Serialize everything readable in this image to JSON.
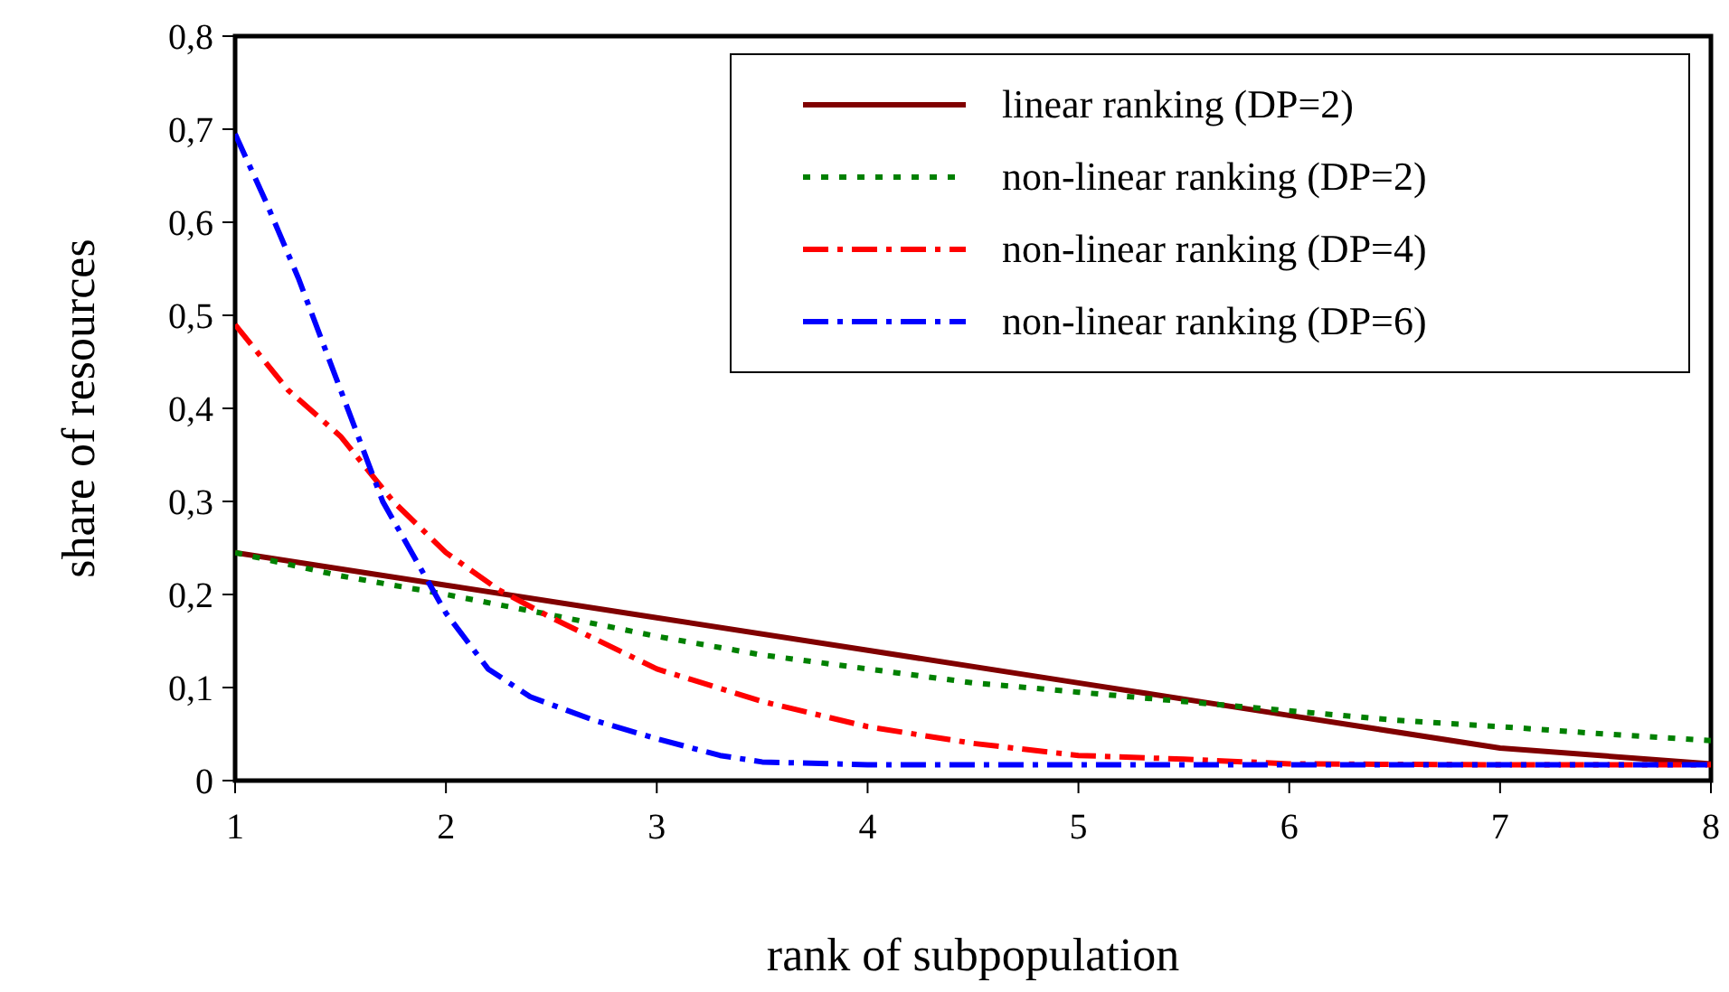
{
  "chart_data": {
    "type": "line",
    "xlabel": "rank of subpopulation",
    "ylabel": "share of resources",
    "x": [
      1,
      2,
      3,
      4,
      5,
      6,
      7,
      8
    ],
    "xlim": [
      1,
      8
    ],
    "xticks": [
      1,
      2,
      3,
      4,
      5,
      6,
      7,
      8
    ],
    "ylim": [
      0,
      0.8
    ],
    "yticks": [
      {
        "value": 0,
        "label": "0"
      },
      {
        "value": 0.1,
        "label": "0,1"
      },
      {
        "value": 0.2,
        "label": "0,2"
      },
      {
        "value": 0.3,
        "label": "0,3"
      },
      {
        "value": 0.4,
        "label": "0,4"
      },
      {
        "value": 0.5,
        "label": "0,5"
      },
      {
        "value": 0.6,
        "label": "0,6"
      },
      {
        "value": 0.7,
        "label": "0,7"
      },
      {
        "value": 0.8,
        "label": "0,8"
      }
    ],
    "grid": false,
    "legend": "top right",
    "marker": "none",
    "series": [
      {
        "name": "linear ranking (DP=2)",
        "color": "#800000",
        "line_style": "solid",
        "values": [
          0.245,
          0.21,
          0.175,
          0.14,
          0.105,
          0.07,
          0.035,
          0.018
        ]
      },
      {
        "name": "non-linear ranking (DP=2)",
        "color": "#008000",
        "line_style": "dotted",
        "x": [
          1,
          1.5,
          2,
          2.5,
          3,
          3.5,
          4,
          4.5,
          5,
          5.5,
          6,
          6.5,
          7,
          7.5,
          8
        ],
        "values": [
          0.245,
          0.22,
          0.2,
          0.178,
          0.155,
          0.135,
          0.12,
          0.105,
          0.095,
          0.085,
          0.075,
          0.065,
          0.058,
          0.05,
          0.043
        ]
      },
      {
        "name": "non-linear ranking (DP=4)",
        "color": "#ff0000",
        "line_style": "dashed",
        "x": [
          1,
          1.25,
          1.5,
          1.75,
          2,
          2.25,
          2.5,
          3,
          3.5,
          4,
          4.5,
          5,
          5.5,
          6,
          7,
          8
        ],
        "values": [
          0.49,
          0.42,
          0.37,
          0.3,
          0.245,
          0.205,
          0.175,
          0.12,
          0.085,
          0.058,
          0.04,
          0.027,
          0.023,
          0.018,
          0.017,
          0.017
        ]
      },
      {
        "name": "non-linear ranking (DP=6)",
        "color": "#0000ff",
        "line_style": "dashed",
        "x": [
          1,
          1.15,
          1.3,
          1.5,
          1.7,
          1.85,
          2,
          2.2,
          2.4,
          2.7,
          3,
          3.3,
          3.5,
          4,
          5,
          6,
          7,
          8
        ],
        "values": [
          0.695,
          0.62,
          0.54,
          0.42,
          0.3,
          0.24,
          0.18,
          0.12,
          0.09,
          0.065,
          0.045,
          0.027,
          0.02,
          0.017,
          0.017,
          0.017,
          0.017,
          0.017
        ]
      }
    ]
  }
}
